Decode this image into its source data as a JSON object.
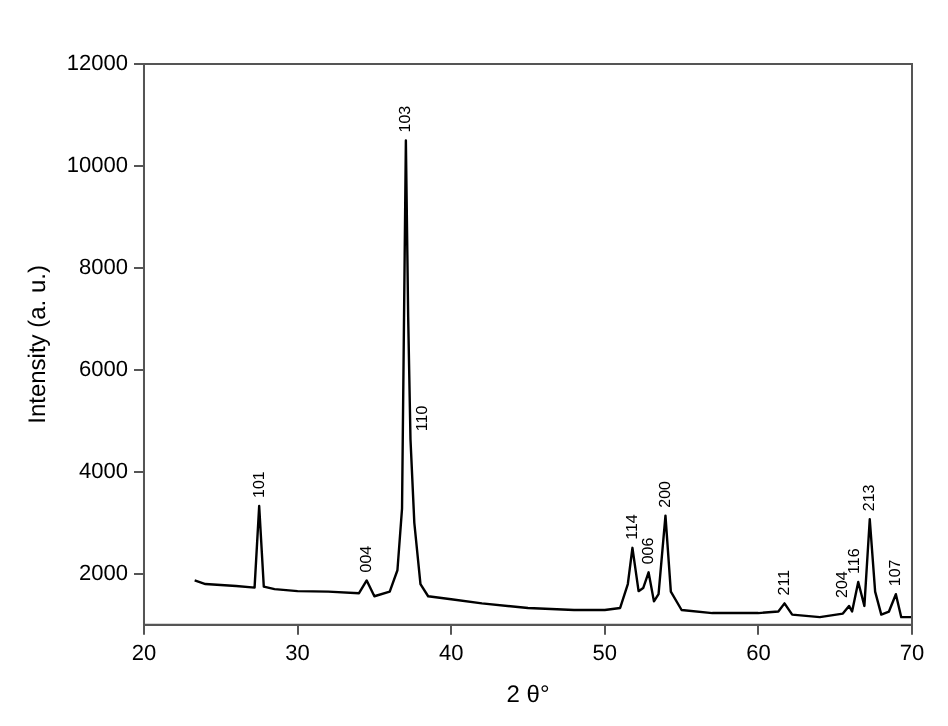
{
  "chart_data": {
    "type": "line",
    "xlabel": "2 θ°",
    "ylabel": "Intensity (a. u.)",
    "color": "#000000",
    "marker": "none",
    "line_style": "solid",
    "grid": false,
    "legend": false,
    "xlim": [
      20,
      70
    ],
    "xticks": [
      20,
      30,
      40,
      50,
      60,
      70
    ],
    "ylim": [
      1000,
      12000
    ],
    "yticks": [
      2000,
      4000,
      6000,
      8000,
      10000,
      12000
    ],
    "x": [
      23.3,
      24,
      26,
      27.2,
      27.5,
      27.8,
      28.5,
      30,
      32,
      34,
      34.5,
      35,
      36,
      36.5,
      36.8,
      37.05,
      37.2,
      37.35,
      37.6,
      38,
      38.5,
      40,
      42,
      45,
      48,
      50,
      51,
      51.5,
      51.8,
      52.2,
      52.5,
      52.85,
      53.2,
      53.5,
      53.95,
      54.3,
      55,
      57,
      60,
      61.3,
      61.7,
      62.2,
      64,
      65.5,
      65.9,
      66.1,
      66.5,
      66.9,
      67.25,
      67.6,
      68,
      68.5,
      68.95,
      69.3,
      70
    ],
    "values": [
      1870,
      1800,
      1760,
      1730,
      3330,
      1750,
      1700,
      1660,
      1650,
      1620,
      1870,
      1560,
      1650,
      2070,
      3280,
      10500,
      7030,
      4640,
      3000,
      1800,
      1560,
      1500,
      1420,
      1330,
      1290,
      1290,
      1330,
      1800,
      2510,
      1660,
      1720,
      2030,
      1460,
      1600,
      3140,
      1650,
      1290,
      1230,
      1230,
      1260,
      1420,
      1200,
      1150,
      1220,
      1370,
      1260,
      1840,
      1370,
      3070,
      1650,
      1200,
      1260,
      1600,
      1150,
      1150
    ],
    "annotations": [
      {
        "text": "101",
        "x": 27.5,
        "y": 3330
      },
      {
        "text": "004",
        "x": 34.5,
        "y": 1870
      },
      {
        "text": "103",
        "x": 37.05,
        "y": 10500
      },
      {
        "text": "110",
        "x": 37.35,
        "y": 4640
      },
      {
        "text": "114",
        "x": 51.8,
        "y": 2510
      },
      {
        "text": "006",
        "x": 52.85,
        "y": 2030
      },
      {
        "text": "200",
        "x": 53.95,
        "y": 3140
      },
      {
        "text": "211",
        "x": 61.7,
        "y": 1420
      },
      {
        "text": "204",
        "x": 65.9,
        "y": 1370
      },
      {
        "text": "116",
        "x": 66.5,
        "y": 1840
      },
      {
        "text": "213",
        "x": 67.25,
        "y": 3070
      },
      {
        "text": "107",
        "x": 68.95,
        "y": 1600
      }
    ]
  }
}
